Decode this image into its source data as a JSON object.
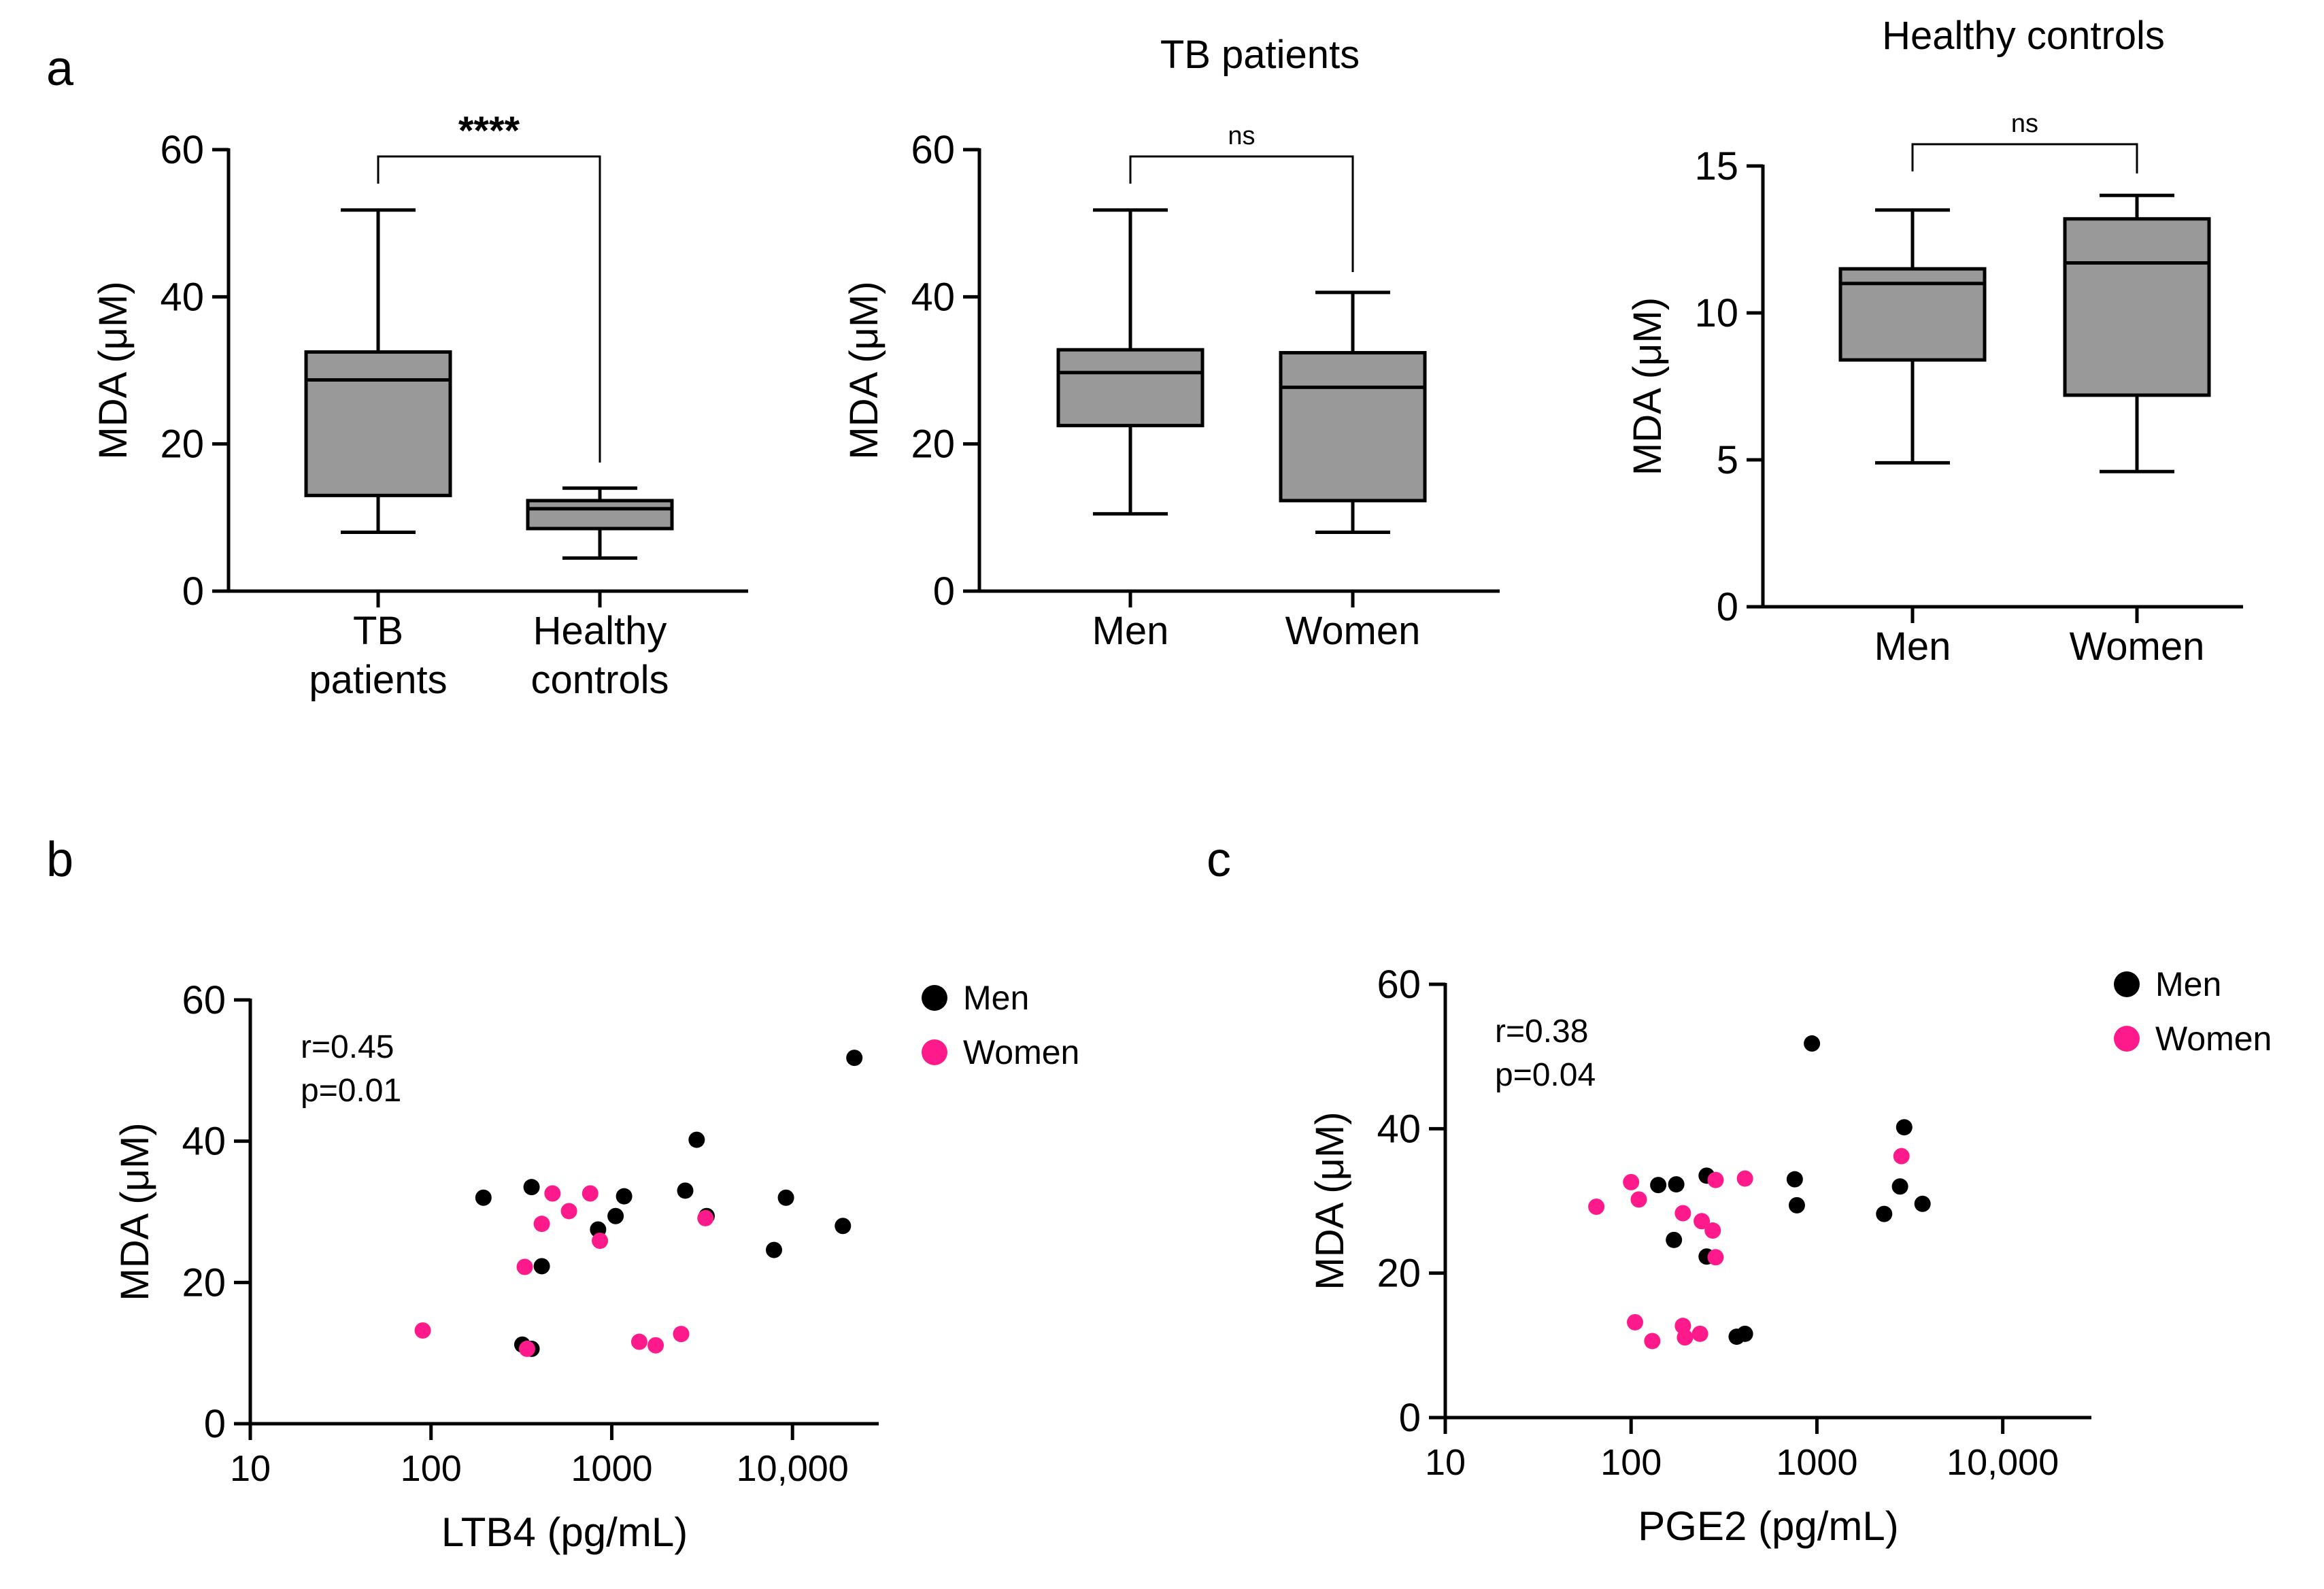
{
  "figure": {
    "background": "#ffffff",
    "box_fill": "#999999",
    "line_color": "#000000"
  },
  "chart_data": [
    {
      "id": "a1",
      "type": "box",
      "panel_label": "a",
      "title": "",
      "ylabel": "MDA (μM)",
      "ylim": [
        0,
        60
      ],
      "yticks": [
        0,
        20,
        40,
        60
      ],
      "categories": [
        [
          "TB",
          "patients"
        ],
        [
          "Healthy",
          "controls"
        ]
      ],
      "boxes": [
        {
          "whisker_low": 8,
          "q1": 13,
          "median": 28.7,
          "q3": 32.5,
          "whisker_high": 51.8
        },
        {
          "whisker_low": 4.5,
          "q1": 8.5,
          "median": 11.2,
          "q3": 12.3,
          "whisker_high": 14
        }
      ],
      "significance": "****"
    },
    {
      "id": "a2",
      "type": "box",
      "panel_label": "",
      "title": "TB patients",
      "ylabel": "MDA (μM)",
      "ylim": [
        0,
        60
      ],
      "yticks": [
        0,
        20,
        40,
        60
      ],
      "categories": [
        [
          "Men"
        ],
        [
          "Women"
        ]
      ],
      "boxes": [
        {
          "whisker_low": 10.5,
          "q1": 22.5,
          "median": 29.7,
          "q3": 32.8,
          "whisker_high": 51.8
        },
        {
          "whisker_low": 8,
          "q1": 12.3,
          "median": 27.7,
          "q3": 32.4,
          "whisker_high": 40.6
        }
      ],
      "significance": "ns"
    },
    {
      "id": "a3",
      "type": "box",
      "panel_label": "",
      "title": "Healthy controls",
      "ylabel": "MDA (μM)",
      "ylim": [
        0,
        15
      ],
      "yticks": [
        0,
        5,
        10,
        15
      ],
      "categories": [
        [
          "Men"
        ],
        [
          "Women"
        ]
      ],
      "boxes": [
        {
          "whisker_low": 4.9,
          "q1": 8.4,
          "median": 11.0,
          "q3": 11.5,
          "whisker_high": 13.5
        },
        {
          "whisker_low": 4.6,
          "q1": 7.2,
          "median": 11.7,
          "q3": 13.2,
          "whisker_high": 14.0
        }
      ],
      "significance": "ns"
    },
    {
      "id": "b",
      "type": "scatter",
      "panel_label": "b",
      "xscale": "log",
      "xlim": [
        10,
        30000
      ],
      "xticks": [
        10,
        100,
        1000,
        10000
      ],
      "xtick_labels": [
        "10",
        "100",
        "1000",
        "10,000"
      ],
      "ylim": [
        0,
        60
      ],
      "yticks": [
        0,
        20,
        40,
        60
      ],
      "xlabel": "LTB4 (pg/mL)",
      "ylabel": "MDA (μM)",
      "stats": [
        "r=0.45",
        "p=0.01"
      ],
      "legend_position": "top-right",
      "series": [
        {
          "name": "Men",
          "color": "#000000",
          "points": [
            [
              195,
              32
            ],
            [
              360,
              33.5
            ],
            [
              410,
              22.3
            ],
            [
              320,
              11.2
            ],
            [
              360,
              10.6
            ],
            [
              840,
              27.5
            ],
            [
              1050,
              29.4
            ],
            [
              1170,
              32.2
            ],
            [
              2550,
              33
            ],
            [
              2950,
              40.2
            ],
            [
              3350,
              29.4
            ],
            [
              7900,
              24.6
            ],
            [
              9200,
              32
            ],
            [
              19000,
              28
            ],
            [
              22000,
              51.8
            ]
          ]
        },
        {
          "name": "Women",
          "color": "#ff1a8c",
          "points": [
            [
              90,
              13.2
            ],
            [
              330,
              22.2
            ],
            [
              340,
              10.6
            ],
            [
              410,
              28.3
            ],
            [
              470,
              32.6
            ],
            [
              580,
              30.1
            ],
            [
              760,
              32.6
            ],
            [
              860,
              25.9
            ],
            [
              1420,
              11.6
            ],
            [
              1750,
              11.1
            ],
            [
              2420,
              12.7
            ],
            [
              3300,
              29.1
            ]
          ]
        }
      ]
    },
    {
      "id": "c",
      "type": "scatter",
      "panel_label": "c",
      "xscale": "log",
      "xlim": [
        10,
        30000
      ],
      "xticks": [
        10,
        100,
        1000,
        10000
      ],
      "xtick_labels": [
        "10",
        "100",
        "1000",
        "10,000"
      ],
      "ylim": [
        0,
        60
      ],
      "yticks": [
        0,
        20,
        40,
        60
      ],
      "xlabel": "PGE2 (pg/mL)",
      "ylabel": "MDA (μM)",
      "stats": [
        "r=0.38",
        "p=0.04"
      ],
      "legend_position": "top-right",
      "series": [
        {
          "name": "Men",
          "color": "#000000",
          "points": [
            [
              140,
              32.2
            ],
            [
              170,
              24.6
            ],
            [
              175,
              32.3
            ],
            [
              255,
              33.5
            ],
            [
              255,
              22.3
            ],
            [
              370,
              11.2
            ],
            [
              410,
              11.6
            ],
            [
              760,
              33
            ],
            [
              780,
              29.4
            ],
            [
              940,
              51.8
            ],
            [
              2300,
              28.2
            ],
            [
              2800,
              32
            ],
            [
              2950,
              40.2
            ],
            [
              3700,
              29.6
            ]
          ]
        },
        {
          "name": "Women",
          "color": "#ff1a8c",
          "points": [
            [
              65,
              29.2
            ],
            [
              100,
              32.6
            ],
            [
              105,
              13.2
            ],
            [
              110,
              30.2
            ],
            [
              130,
              10.6
            ],
            [
              190,
              28.3
            ],
            [
              190,
              12.7
            ],
            [
              195,
              11.1
            ],
            [
              235,
              11.6
            ],
            [
              240,
              27.2
            ],
            [
              275,
              25.9
            ],
            [
              285,
              22.2
            ],
            [
              285,
              32.9
            ],
            [
              410,
              33.1
            ],
            [
              2850,
              36.2
            ]
          ]
        }
      ]
    }
  ]
}
